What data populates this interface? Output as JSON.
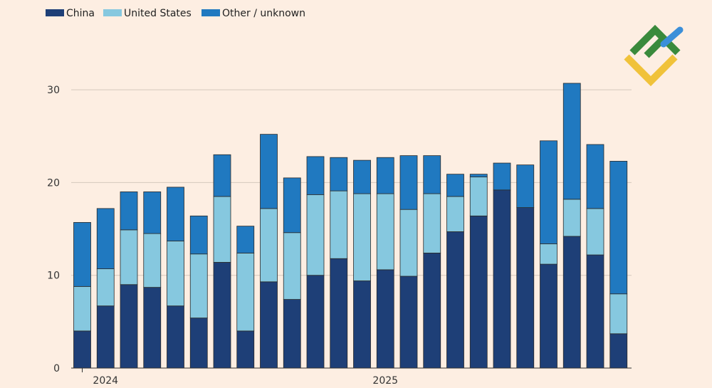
{
  "chart_data": {
    "type": "bar",
    "stacked": true,
    "title": "",
    "xlabel": "",
    "ylabel": "",
    "ylim": [
      0,
      35
    ],
    "yticks": [
      0,
      10,
      20,
      30
    ],
    "grid": true,
    "legend_position": "top-left",
    "x_tick_labels": [
      {
        "label": "2024",
        "at_bar": 1
      },
      {
        "label": "2025",
        "at_bar": 13
      }
    ],
    "categories": [
      "1",
      "2",
      "3",
      "4",
      "5",
      "6",
      "7",
      "8",
      "9",
      "10",
      "11",
      "12",
      "13",
      "14",
      "15",
      "16",
      "17",
      "18",
      "19",
      "20",
      "21",
      "22",
      "23",
      "24",
      "25"
    ],
    "series": [
      {
        "name": "China",
        "color": "#1e3f77",
        "values": [
          4.0,
          6.7,
          9.0,
          8.7,
          6.7,
          5.4,
          11.4,
          4.0,
          9.3,
          7.4,
          10.0,
          11.8,
          9.4,
          10.6,
          9.9,
          12.4,
          14.7,
          16.4,
          19.2,
          17.3,
          11.2,
          14.2,
          12.2,
          3.7,
          0
        ]
      },
      {
        "name": "United States",
        "color": "#86c8df",
        "values": [
          4.8,
          4.0,
          5.9,
          5.8,
          7.0,
          6.9,
          7.1,
          8.4,
          7.9,
          7.2,
          8.7,
          7.3,
          9.4,
          8.2,
          7.2,
          6.4,
          3.8,
          4.2,
          0,
          0,
          2.2,
          4.0,
          5.0,
          4.3,
          0
        ],
        "note": "series values per bar"
      },
      {
        "name": "Other / unknown",
        "color": "#2079c0",
        "values": [
          6.9,
          6.5,
          4.1,
          4.5,
          5.8,
          4.1,
          4.5,
          2.9,
          8.0,
          5.9,
          4.1,
          3.6,
          3.6,
          3.9,
          5.8,
          4.1,
          2.4,
          0.3,
          2.9,
          4.6,
          11.1,
          12.5,
          6.9,
          14.3,
          0
        ]
      }
    ]
  },
  "legend": {
    "items": [
      {
        "label": "China",
        "color": "#1e3f77"
      },
      {
        "label": "United States",
        "color": "#86c8df"
      },
      {
        "label": "Other / unknown",
        "color": "#2079c0"
      }
    ]
  },
  "logo": {
    "name": "brand-logo",
    "colors": {
      "green": "#3a8a3c",
      "yellow": "#f0c23a",
      "blue": "#3b8fd9"
    }
  }
}
